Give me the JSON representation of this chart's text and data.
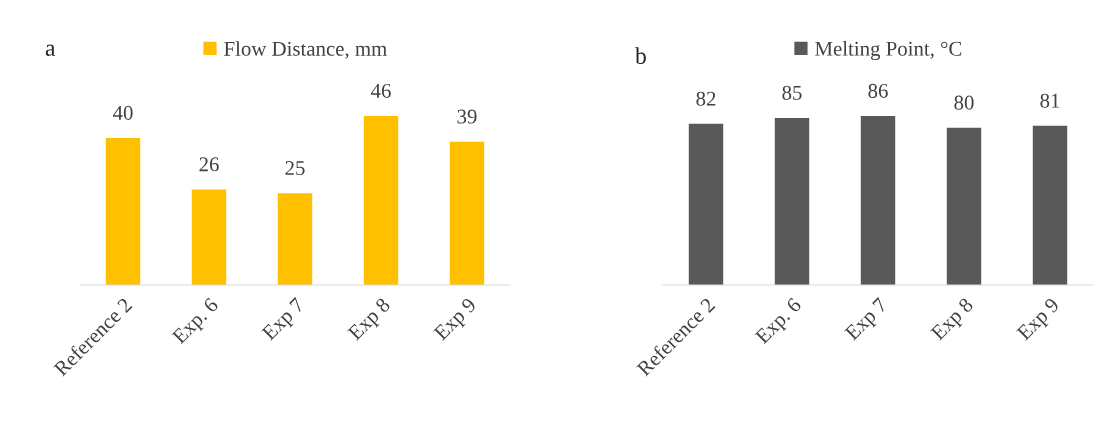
{
  "chart_data": [
    {
      "type": "bar",
      "categories": [
        "Reference 2",
        "Exp. 6",
        "Exp 7",
        "Exp 8",
        "Exp 9"
      ],
      "series": [
        {
          "name": "Flow Distance, mm",
          "color": "#ffc000",
          "values": [
            40,
            26,
            25,
            46,
            39
          ]
        }
      ],
      "data_labels": true,
      "ylim": [
        0,
        46
      ],
      "legend": "top",
      "annotations": [
        "a"
      ]
    },
    {
      "type": "bar",
      "categories": [
        "Reference 2",
        "Exp. 6",
        "Exp 7",
        "Exp 8",
        "Exp 9"
      ],
      "series": [
        {
          "name": "Melting Point, °C",
          "color": "#595959",
          "values": [
            82,
            85,
            86,
            80,
            81
          ]
        }
      ],
      "data_labels": true,
      "legend": "top",
      "annotations": [
        "b"
      ]
    }
  ]
}
